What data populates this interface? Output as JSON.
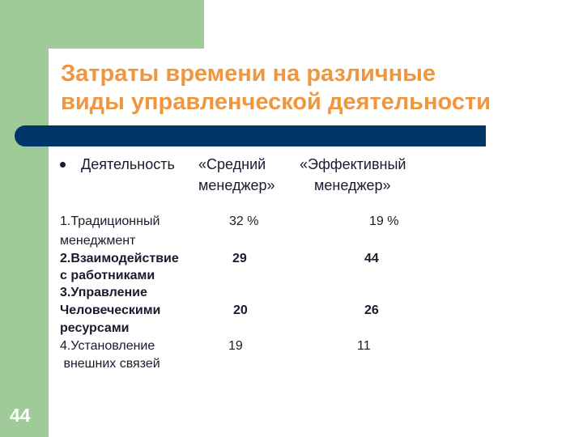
{
  "slide": {
    "title_line1": "Затраты времени на различные",
    "title_line2": "виды управленческой деятельности",
    "number": "44"
  },
  "header": {
    "activity": "Деятельность",
    "col_avg_line1": "«Средний",
    "col_avg_line2": "менеджер»",
    "col_eff_line1": "«Эффективный",
    "col_eff_line2": "менеджер»"
  },
  "rows": [
    {
      "label_lines": [
        "1.Традиционный",
        "менеджмент"
      ],
      "avg": "32 %",
      "eff": "19 %",
      "bold": false
    },
    {
      "label_lines": [
        "2.Взаимодействие",
        "с работниками"
      ],
      "avg": "29",
      "eff": "44",
      "bold": true
    },
    {
      "label_lines": [
        "3.Управление",
        "Человеческими",
        "ресурсами"
      ],
      "avg": "20",
      "eff": "26",
      "bold": true
    },
    {
      "label_lines": [
        "4.Установление",
        " внешних связей"
      ],
      "avg": "19",
      "eff": "11",
      "bold": false
    }
  ],
  "colors": {
    "title": "#f0963e",
    "bar": "#003567",
    "green": "#9ecb97"
  }
}
